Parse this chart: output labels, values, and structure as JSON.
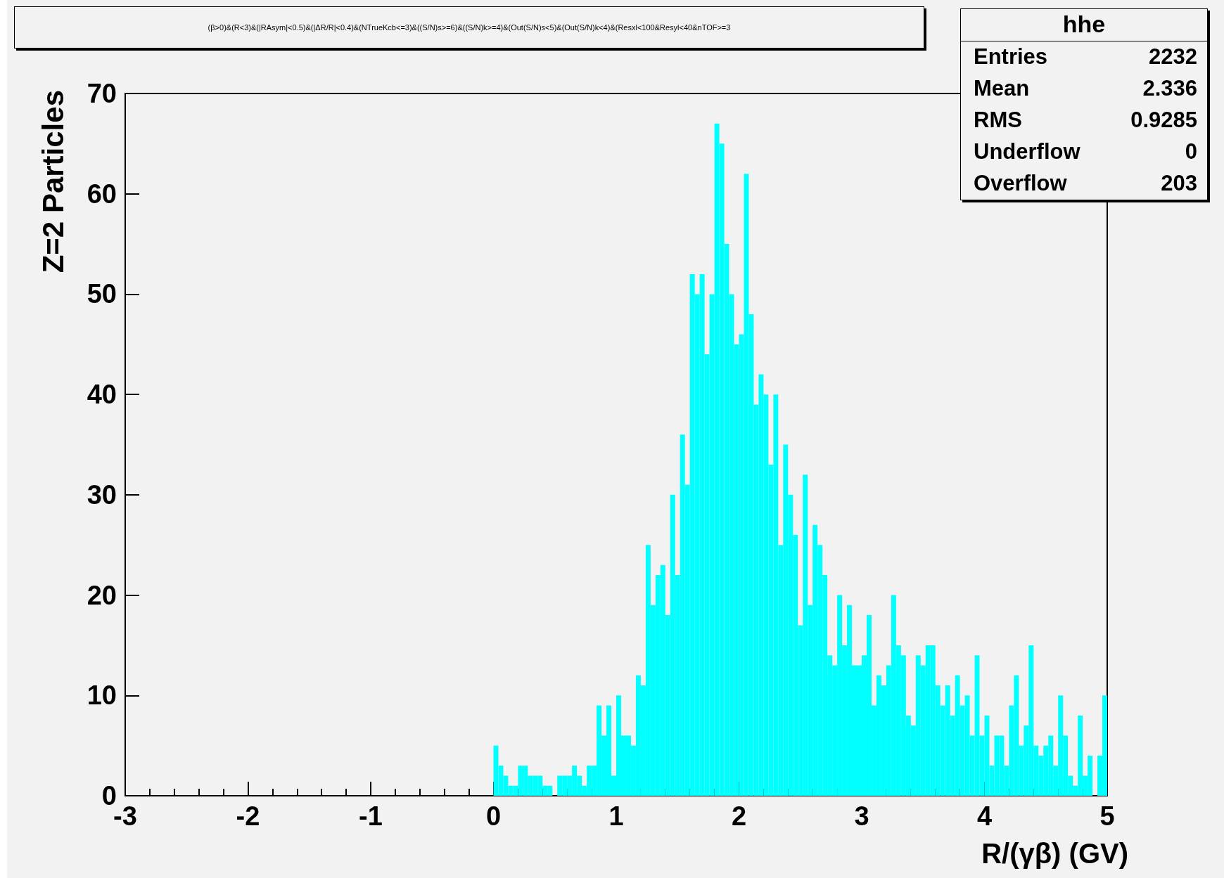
{
  "chart_data": {
    "type": "histogram",
    "title": "(β>0)&(R<3)&(|RAsym|<0.5)&(|ΔR/R|<0.4)&(NTrueKcb<=3)&((S/N)s>=6)&((S/N)k>=4)&(Out(S/N)s<5)&(Out(S/N)k<4)&(Resxl<100&Resyl<40&nTOF>=3",
    "xlabel": "R/(γβ) (GV)",
    "ylabel": "Z=2 Particles",
    "bins": [
      0,
      0.04,
      0.08,
      0.12,
      0.16,
      0.2,
      0.24,
      0.28,
      0.32,
      0.36,
      0.4,
      0.44,
      0.48,
      0.52,
      0.56,
      0.6,
      0.64,
      0.68,
      0.72,
      0.76,
      0.8,
      0.84,
      0.88,
      0.92,
      0.96,
      1,
      1.04,
      1.08,
      1.12,
      1.16,
      1.2,
      1.24,
      1.28,
      1.32,
      1.36,
      1.4,
      1.44,
      1.48,
      1.52,
      1.56,
      1.6,
      1.64,
      1.68,
      1.72,
      1.76,
      1.8,
      1.84,
      1.88,
      1.92,
      1.96,
      2,
      2.04,
      2.08,
      2.12,
      2.16,
      2.2,
      2.24,
      2.28,
      2.32,
      2.36,
      2.4,
      2.44,
      2.48,
      2.52,
      2.56,
      2.6,
      2.64,
      2.68,
      2.72,
      2.76,
      2.8,
      2.84,
      2.88,
      2.92,
      2.96,
      3,
      3.04,
      3.08,
      3.12,
      3.16,
      3.2,
      3.24,
      3.28,
      3.32,
      3.36,
      3.4,
      3.44,
      3.48,
      3.52,
      3.56,
      3.6,
      3.64,
      3.68,
      3.72,
      3.76,
      3.8,
      3.84,
      3.88,
      3.92,
      3.96,
      4,
      4.04,
      4.08,
      4.12,
      4.16,
      4.2,
      4.24,
      4.28,
      4.32,
      4.36,
      4.4,
      4.44,
      4.48,
      4.52,
      4.56,
      4.6,
      4.64,
      4.68,
      4.72,
      4.76,
      4.8,
      4.84,
      4.88,
      4.92,
      4.96,
      5
    ],
    "values": [
      5,
      3,
      2,
      1,
      1,
      3,
      3,
      2,
      2,
      2,
      1,
      1,
      0,
      2,
      2,
      2,
      3,
      2,
      1,
      3,
      3,
      9,
      6,
      9,
      2,
      10,
      6,
      6,
      5,
      12,
      11,
      25,
      19,
      22,
      23,
      18,
      30,
      22,
      36,
      31,
      52,
      50,
      52,
      44,
      50,
      67,
      65,
      55,
      50,
      45,
      46,
      62,
      48,
      39,
      42,
      40,
      33,
      40,
      25,
      35,
      30,
      26,
      17,
      32,
      19,
      27,
      25,
      22,
      14,
      13,
      20,
      15,
      19,
      13,
      13,
      14,
      18,
      9,
      12,
      11,
      13,
      20,
      15,
      14,
      8,
      7,
      14,
      13,
      15,
      15,
      11,
      9,
      11,
      8,
      12,
      9,
      10,
      6,
      14,
      6,
      8,
      3,
      6,
      6,
      3,
      9,
      12,
      5,
      7,
      15,
      5,
      4,
      5,
      6,
      3,
      10,
      6,
      2,
      1,
      8,
      2,
      4,
      0,
      4,
      10
    ],
    "color": "#00ffff",
    "xlim": [
      -3,
      5
    ],
    "xticks": [
      -3,
      -2,
      -1,
      0,
      1,
      2,
      3,
      4,
      5
    ],
    "ylim": [
      0,
      70
    ],
    "yticks": [
      0,
      10,
      20,
      30,
      40,
      50,
      60,
      70
    ],
    "annotations": [
      "hhe",
      "Entries",
      "2232",
      "Mean",
      "2.336",
      "RMS",
      "0.9285",
      "Underflow",
      "0",
      "Overflow",
      "203"
    ]
  }
}
